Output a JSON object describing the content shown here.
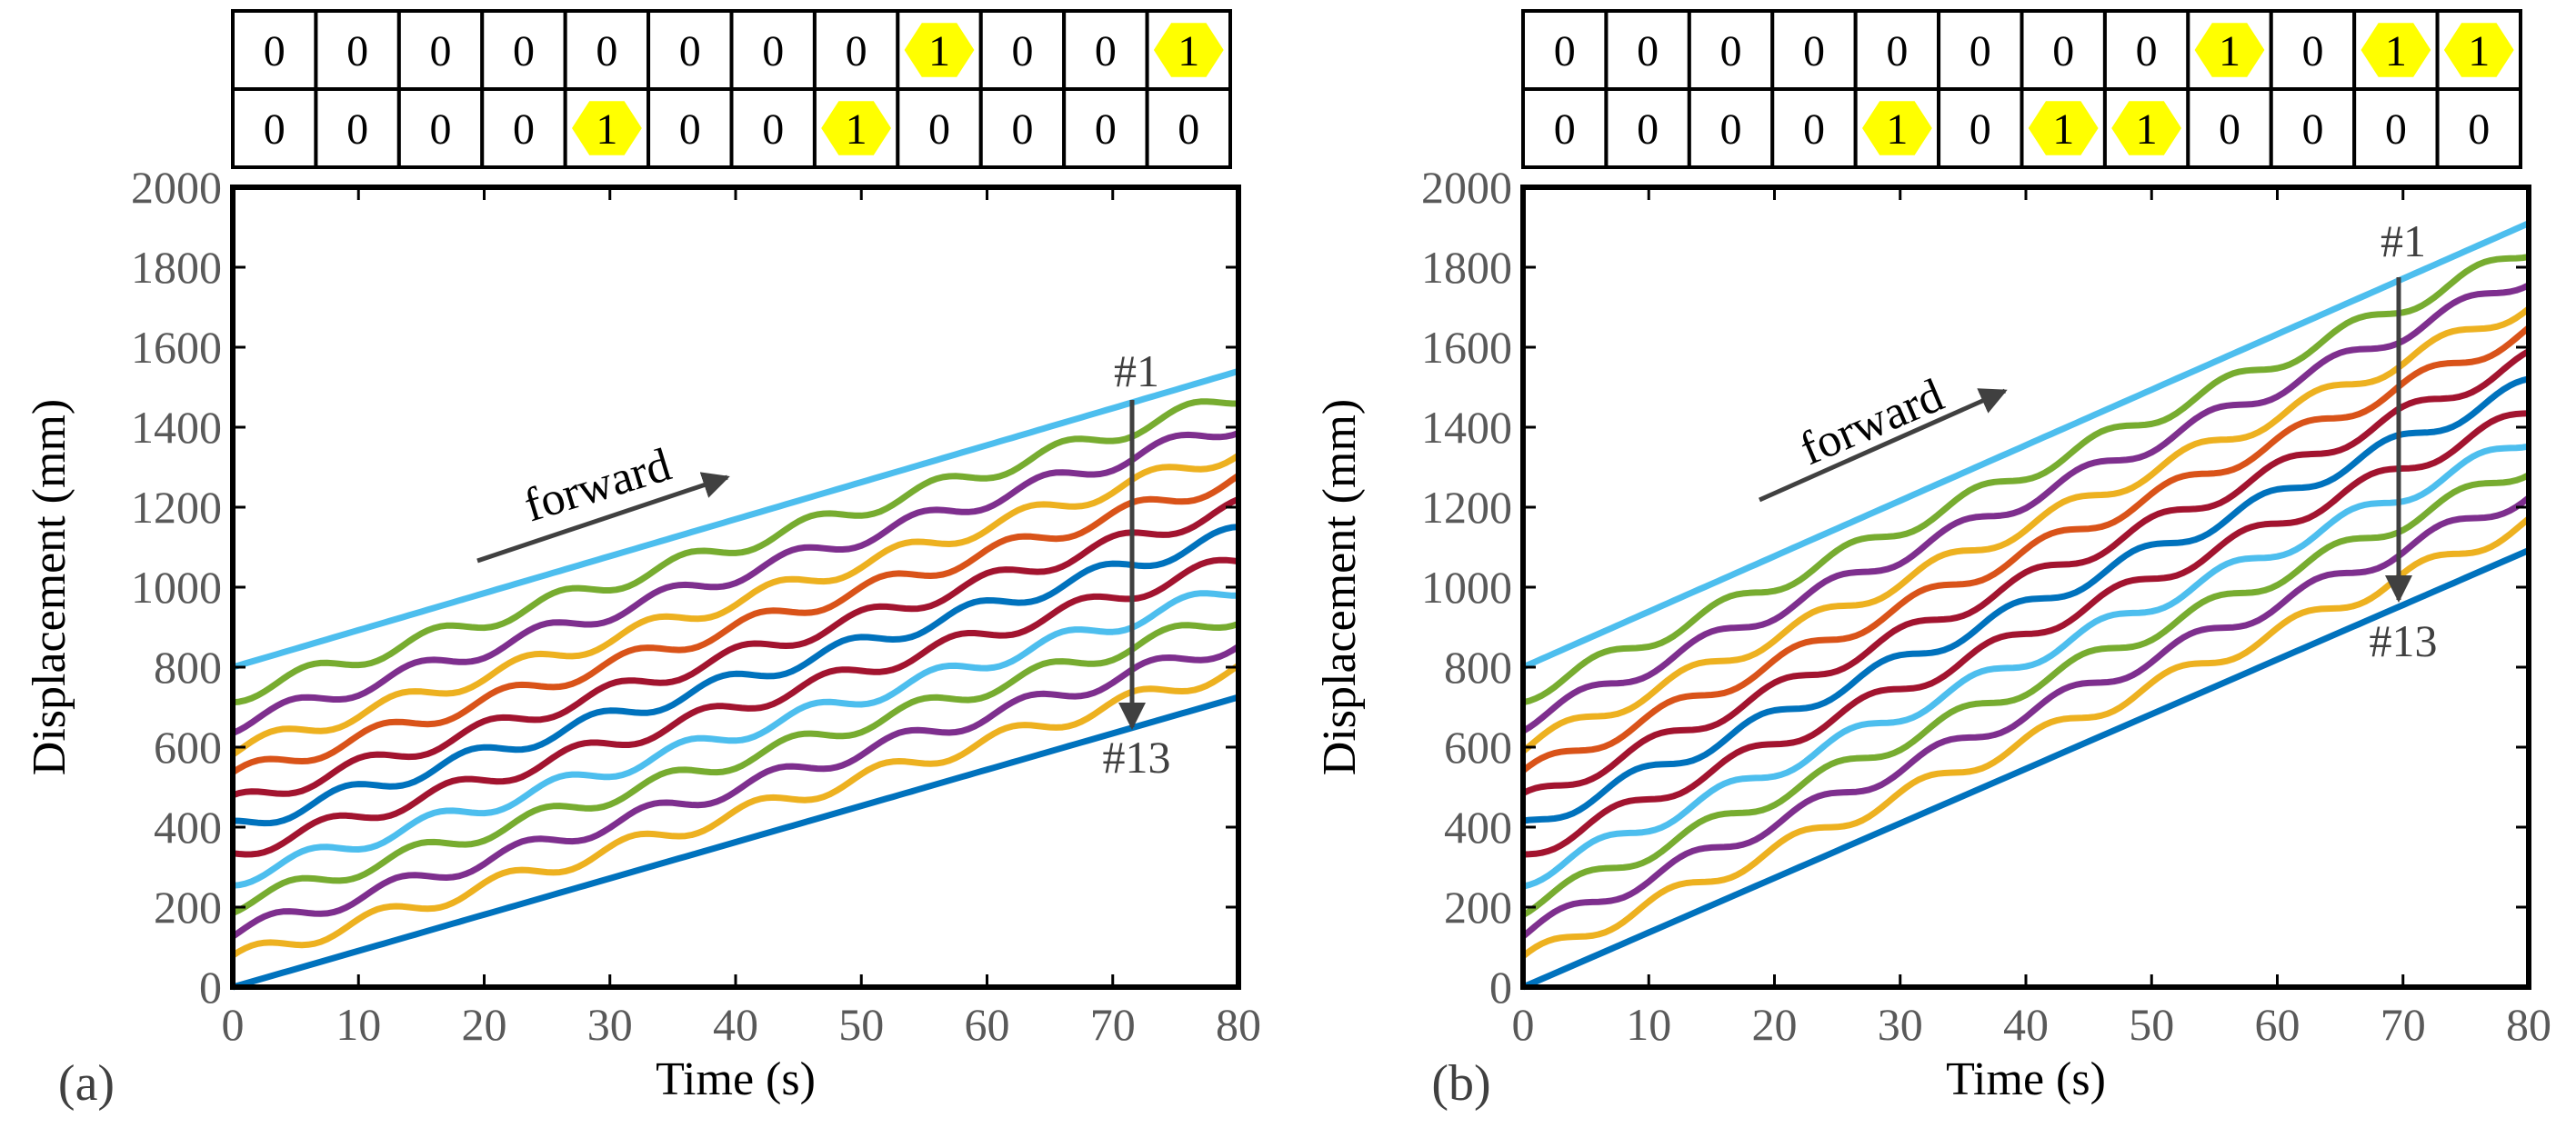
{
  "colors": {
    "highlight": "#ffff00",
    "axis": "#000000",
    "tick_text": "#595959",
    "annotation": "#404040",
    "series": [
      "#4dbeee",
      "#77ac30",
      "#7e2f8e",
      "#edb120",
      "#d95319",
      "#a2142f",
      "#0072bd",
      "#a2142f",
      "#4dbeee",
      "#77ac30",
      "#7e2f8e",
      "#edb120",
      "#d95319",
      "#0072bd"
    ]
  },
  "chart_data": [
    {
      "type": "line",
      "panel_label": "(a)",
      "xlabel": "Time (s)",
      "ylabel": "Displacement (mm)",
      "xlim": [
        0,
        80
      ],
      "ylim": [
        0,
        2000
      ],
      "x_ticks": [
        "0",
        "10",
        "20",
        "30",
        "40",
        "50",
        "60",
        "70",
        "80"
      ],
      "y_ticks": [
        "0",
        "200",
        "400",
        "600",
        "800",
        "1000",
        "1200",
        "1400",
        "1600",
        "1800",
        "2000"
      ],
      "grid": false,
      "x": [
        0,
        80
      ],
      "series": [
        {
          "values": [
            800,
            1540
          ]
        },
        {
          "values": [
            728,
            1475
          ]
        },
        {
          "values": [
            655,
            1405
          ]
        },
        {
          "values": [
            590,
            1338
          ]
        },
        {
          "values": [
            528,
            1270
          ]
        },
        {
          "values": [
            460,
            1200
          ]
        },
        {
          "values": [
            400,
            1135
          ]
        },
        {
          "values": [
            335,
            1065
          ]
        },
        {
          "values": [
            270,
            995
          ]
        },
        {
          "values": [
            205,
            928
          ]
        },
        {
          "values": [
            135,
            860
          ]
        },
        {
          "values": [
            70,
            795
          ]
        },
        {
          "values": [
            0,
            725
          ]
        }
      ],
      "annotations": {
        "start_label": "#1",
        "end_label": "#13",
        "direction_label": "forward"
      },
      "bit_grid": {
        "rows": [
          [
            "0",
            "0",
            "0",
            "0",
            "0",
            "0",
            "0",
            "0",
            "1",
            "0",
            "0",
            "1"
          ],
          [
            "0",
            "0",
            "0",
            "0",
            "1",
            "0",
            "0",
            "1",
            "0",
            "0",
            "0",
            "0"
          ]
        ]
      }
    },
    {
      "type": "line",
      "panel_label": "(b)",
      "xlabel": "Time (s)",
      "ylabel": "Displacement (mm)",
      "xlim": [
        0,
        80
      ],
      "ylim": [
        0,
        2000
      ],
      "x_ticks": [
        "0",
        "10",
        "20",
        "30",
        "40",
        "50",
        "60",
        "70",
        "80"
      ],
      "y_ticks": [
        "0",
        "200",
        "400",
        "600",
        "800",
        "1000",
        "1200",
        "1400",
        "1600",
        "1800",
        "2000"
      ],
      "grid": false,
      "x": [
        0,
        80
      ],
      "series": [
        {
          "values": [
            800,
            1910
          ]
        },
        {
          "values": [
            728,
            1842
          ]
        },
        {
          "values": [
            660,
            1775
          ]
        },
        {
          "values": [
            598,
            1705
          ]
        },
        {
          "values": [
            532,
            1640
          ]
        },
        {
          "values": [
            465,
            1570
          ]
        },
        {
          "values": [
            400,
            1505
          ]
        },
        {
          "values": [
            332,
            1435
          ]
        },
        {
          "values": [
            268,
            1368
          ]
        },
        {
          "values": [
            200,
            1300
          ]
        },
        {
          "values": [
            135,
            1232
          ]
        },
        {
          "values": [
            68,
            1162
          ]
        },
        {
          "values": [
            0,
            1092
          ]
        }
      ],
      "annotations": {
        "start_label": "#1",
        "end_label": "#13",
        "direction_label": "forward"
      },
      "bit_grid": {
        "rows": [
          [
            "0",
            "0",
            "0",
            "0",
            "0",
            "0",
            "0",
            "0",
            "1",
            "0",
            "1",
            "1"
          ],
          [
            "0",
            "0",
            "0",
            "0",
            "1",
            "0",
            "1",
            "1",
            "0",
            "0",
            "0",
            "0"
          ]
        ]
      }
    }
  ]
}
